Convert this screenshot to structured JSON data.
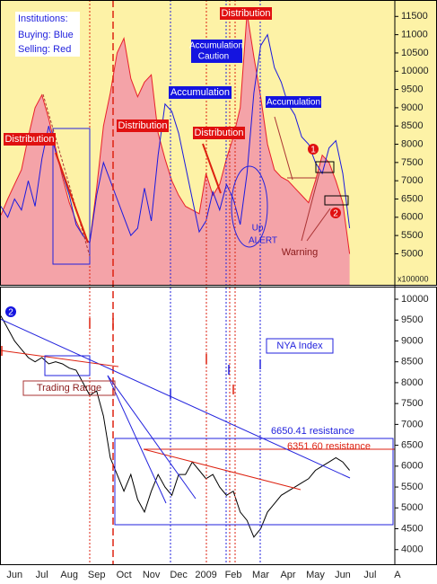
{
  "chart_data": {
    "type": "line",
    "categories": [
      "Jun",
      null,
      null,
      null,
      "Jul",
      null,
      null,
      null,
      "Aug",
      null,
      null,
      null,
      "Sep",
      null,
      null,
      null,
      "Oct",
      null,
      null,
      null,
      "Nov",
      null,
      null,
      null,
      "Dec",
      null,
      null,
      null,
      "2009",
      null,
      null,
      null,
      "Feb",
      null,
      null,
      null,
      "Mar",
      null,
      null,
      null,
      "Apr",
      null,
      null,
      null,
      "May",
      null,
      null,
      null,
      "Jun",
      null,
      null,
      null,
      "Jul",
      null,
      null,
      null,
      "A",
      null
    ],
    "panels": [
      {
        "ylim": [
          4150,
          11950
        ],
        "yticks": [
          5000,
          5500,
          6000,
          6500,
          7000,
          7500,
          8000,
          8500,
          9000,
          9500,
          10000,
          10500,
          11000,
          11500
        ],
        "unit_label": "x100000",
        "notes": [
          "Institutions:",
          "Buying: Blue",
          "Selling: Red",
          "Distribution",
          "Distribution",
          "Distribution",
          "Distribution",
          "Accumulation",
          "Caution",
          "Accumulation",
          "Accumulation",
          "Up",
          "ALERT",
          "Warning",
          "1",
          "2"
        ],
        "series": [
          {
            "type": "area",
            "color": "#e8202a",
            "fill": "#f4a3a8",
            "values": [
              6060,
              6500,
              6900,
              7300,
              8200,
              9000,
              9350,
              8700,
              7900,
              7100,
              6400,
              5900,
              5500,
              5300,
              6800,
              8500,
              9400,
              10500,
              10900,
              9800,
              9300,
              9700,
              9900,
              8300,
              7600,
              7000,
              6600,
              6300,
              6200,
              6100,
              7200,
              6600,
              6900,
              7600,
              8200,
              9000,
              11600,
              10400,
              9300,
              8000,
              7300,
              7100,
              7000,
              6800,
              6600,
              6400,
              7000,
              7700,
              7500,
              7000,
              6400,
              5000,
              null,
              null,
              null,
              null,
              null,
              null
            ]
          },
          {
            "type": "line",
            "color": "#1a1adf",
            "values": [
              6300,
              6000,
              6500,
              6200,
              7000,
              6300,
              7600,
              8500,
              7800,
              7200,
              6600,
              5800,
              5500,
              5300,
              6600,
              7500,
              7000,
              6500,
              6000,
              5500,
              5700,
              6800,
              5900,
              7700,
              9100,
              8900,
              8300,
              7400,
              6500,
              5600,
              5900,
              6700,
              6200,
              6900,
              6500,
              5800,
              7200,
              9400,
              10700,
              11000,
              10100,
              9700,
              9100,
              8800,
              8200,
              8000,
              7500,
              7200,
              7900,
              8100,
              7200,
              5700,
              null,
              null,
              null,
              null,
              null,
              null
            ]
          }
        ]
      },
      {
        "ylim": [
          3650,
          10280
        ],
        "yticks": [
          4000,
          4500,
          5000,
          5500,
          6000,
          6500,
          7000,
          7500,
          8000,
          8500,
          9000,
          9500,
          10000
        ],
        "notes": [
          "2",
          "NYA Index",
          "Trading Range",
          "6650.41 resistance",
          "6351.60 resistance"
        ],
        "series": [
          {
            "type": "line",
            "color": "#000000",
            "values": [
              9600,
              9300,
              9000,
              8800,
              8600,
              8500,
              8600,
              8450,
              8500,
              8450,
              8350,
              8300,
              8000,
              7700,
              7800,
              7200,
              6200,
              5800,
              5400,
              5800,
              5200,
              4900,
              5400,
              5800,
              5500,
              5300,
              5800,
              5800,
              6100,
              5900,
              5700,
              5800,
              5500,
              5300,
              5400,
              4900,
              4700,
              4300,
              4500,
              4900,
              5100,
              5300,
              5400,
              5500,
              5600,
              5700,
              5900,
              6000,
              6100,
              6200,
              6100,
              5900,
              null,
              null,
              null,
              null,
              null,
              null
            ]
          }
        ]
      }
    ]
  }
}
